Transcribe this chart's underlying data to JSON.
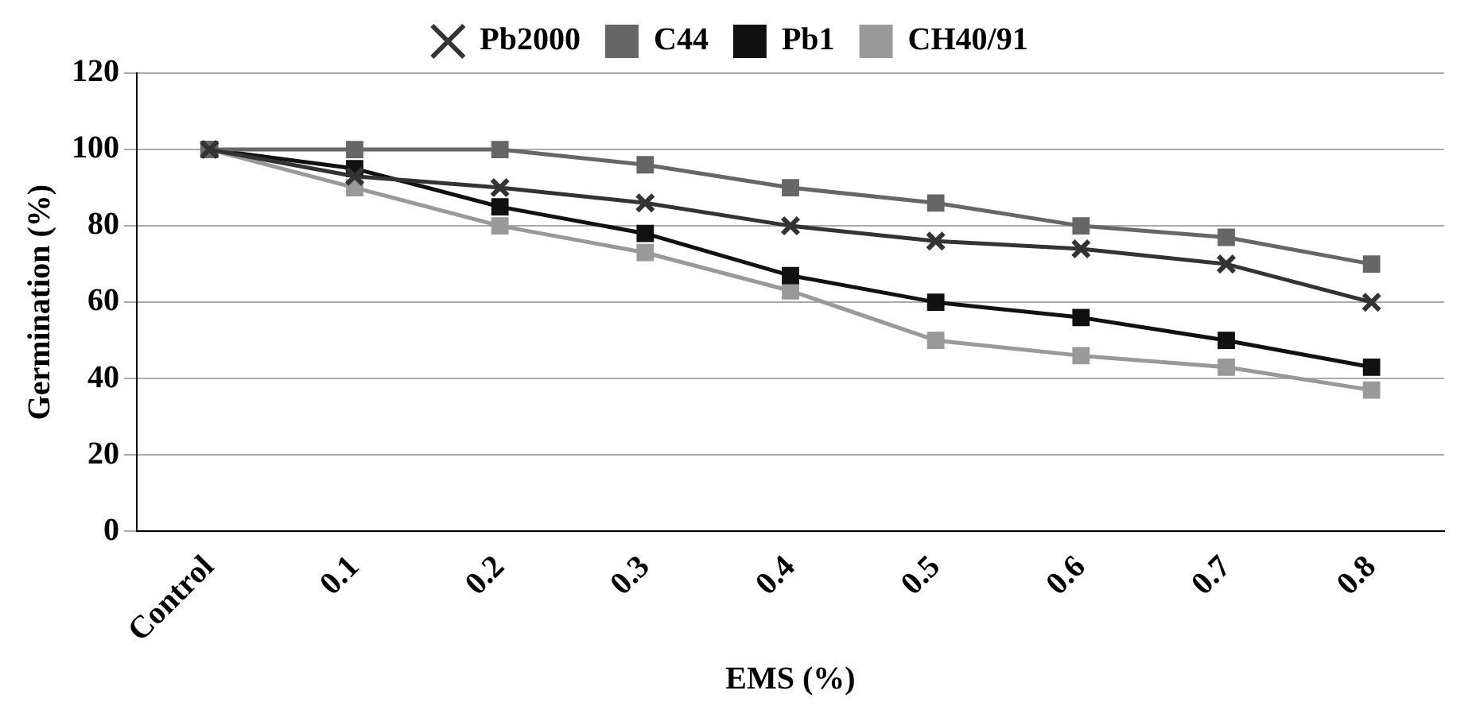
{
  "chart_data": {
    "type": "line",
    "xlabel": "EMS (%)",
    "ylabel": "Germination (%)",
    "categories": [
      "Control",
      "0.1",
      "0.2",
      "0.3",
      "0.4",
      "0.5",
      "0.6",
      "0.7",
      "0.8"
    ],
    "series": [
      {
        "name": "Pb2000",
        "color": "#333333",
        "marker": "cross",
        "values": [
          100,
          93,
          90,
          86,
          80,
          76,
          74,
          70,
          60
        ]
      },
      {
        "name": "C44",
        "color": "#666666",
        "marker": "square",
        "values": [
          100,
          100,
          100,
          96,
          90,
          86,
          80,
          77,
          70
        ]
      },
      {
        "name": "Pb1",
        "color": "#111111",
        "marker": "square",
        "values": [
          100,
          95,
          85,
          78,
          67,
          60,
          56,
          50,
          43
        ]
      },
      {
        "name": "CH40/91",
        "color": "#999999",
        "marker": "square",
        "values": [
          100,
          90,
          80,
          73,
          63,
          50,
          46,
          43,
          37
        ]
      }
    ],
    "ylim": [
      0,
      120
    ],
    "yticks": [
      0,
      20,
      40,
      60,
      80,
      100,
      120
    ],
    "grid": "y",
    "legend": "top",
    "line_style": "solid"
  }
}
